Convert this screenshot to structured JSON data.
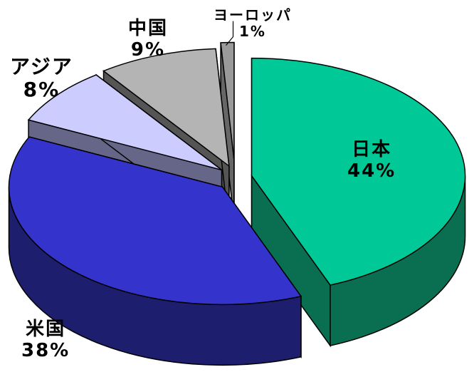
{
  "chart_data": {
    "type": "pie",
    "style": "3d-exploded",
    "categories": [
      "日本",
      "米国",
      "アジア",
      "中国",
      "ヨーロッパ"
    ],
    "values": [
      44,
      38,
      8,
      9,
      1
    ],
    "labels": [
      "44%",
      "38%",
      "8%",
      "9%",
      "1%"
    ],
    "colors": [
      "#00c896",
      "#3434cc",
      "#ccccff",
      "#b4b4b4",
      "#9a9a9a"
    ],
    "side_colors": [
      "#0a6e50",
      "#1e1e6e",
      "#666688",
      "#555555",
      "#666666"
    ],
    "title": "",
    "legend": "none"
  }
}
